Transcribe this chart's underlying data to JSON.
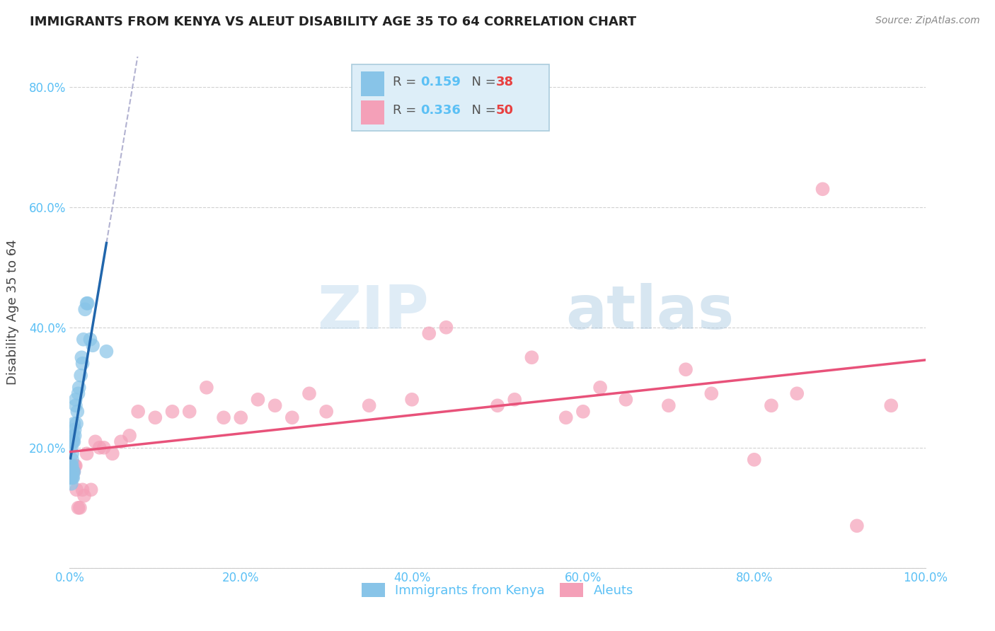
{
  "title": "IMMIGRANTS FROM KENYA VS ALEUT DISABILITY AGE 35 TO 64 CORRELATION CHART",
  "source": "Source: ZipAtlas.com",
  "ylabel": "Disability Age 35 to 64",
  "xlim": [
    0.0,
    1.0
  ],
  "ylim": [
    0.0,
    0.85
  ],
  "xticks": [
    0.0,
    0.2,
    0.4,
    0.6,
    0.8,
    1.0
  ],
  "yticks": [
    0.0,
    0.2,
    0.4,
    0.6,
    0.8
  ],
  "xticklabels": [
    "0.0%",
    "20.0%",
    "40.0%",
    "60.0%",
    "80.0%",
    "100.0%"
  ],
  "yticklabels": [
    "",
    "20.0%",
    "40.0%",
    "60.0%",
    "80.0%"
  ],
  "kenya_R": 0.159,
  "kenya_N": 38,
  "aleut_R": 0.336,
  "aleut_N": 50,
  "kenya_color": "#88c4e8",
  "aleut_color": "#f4a0b8",
  "kenya_line_color": "#2166ac",
  "aleut_line_color": "#e8527a",
  "dashed_line_color": "#aaaacc",
  "kenya_x": [
    0.001,
    0.001,
    0.001,
    0.002,
    0.002,
    0.002,
    0.002,
    0.003,
    0.003,
    0.003,
    0.003,
    0.003,
    0.003,
    0.004,
    0.004,
    0.004,
    0.004,
    0.005,
    0.005,
    0.005,
    0.006,
    0.006,
    0.007,
    0.007,
    0.008,
    0.009,
    0.01,
    0.011,
    0.013,
    0.014,
    0.015,
    0.016,
    0.018,
    0.02,
    0.021,
    0.024,
    0.027,
    0.043
  ],
  "kenya_y": [
    0.15,
    0.17,
    0.17,
    0.14,
    0.15,
    0.17,
    0.2,
    0.15,
    0.16,
    0.17,
    0.18,
    0.19,
    0.21,
    0.15,
    0.16,
    0.21,
    0.22,
    0.16,
    0.21,
    0.24,
    0.22,
    0.23,
    0.27,
    0.28,
    0.24,
    0.26,
    0.29,
    0.3,
    0.32,
    0.35,
    0.34,
    0.38,
    0.43,
    0.44,
    0.44,
    0.38,
    0.37,
    0.36
  ],
  "aleut_x": [
    0.003,
    0.004,
    0.005,
    0.006,
    0.007,
    0.008,
    0.01,
    0.012,
    0.015,
    0.017,
    0.02,
    0.025,
    0.03,
    0.035,
    0.04,
    0.05,
    0.06,
    0.07,
    0.08,
    0.1,
    0.12,
    0.14,
    0.16,
    0.18,
    0.2,
    0.22,
    0.24,
    0.26,
    0.28,
    0.3,
    0.35,
    0.4,
    0.42,
    0.44,
    0.5,
    0.52,
    0.54,
    0.58,
    0.6,
    0.62,
    0.65,
    0.7,
    0.72,
    0.75,
    0.8,
    0.82,
    0.85,
    0.88,
    0.92,
    0.96
  ],
  "aleut_y": [
    0.15,
    0.16,
    0.16,
    0.17,
    0.17,
    0.13,
    0.1,
    0.1,
    0.13,
    0.12,
    0.19,
    0.13,
    0.21,
    0.2,
    0.2,
    0.19,
    0.21,
    0.22,
    0.26,
    0.25,
    0.26,
    0.26,
    0.3,
    0.25,
    0.25,
    0.28,
    0.27,
    0.25,
    0.29,
    0.26,
    0.27,
    0.28,
    0.39,
    0.4,
    0.27,
    0.28,
    0.35,
    0.25,
    0.26,
    0.3,
    0.28,
    0.27,
    0.33,
    0.29,
    0.18,
    0.27,
    0.29,
    0.63,
    0.07,
    0.27
  ],
  "watermark_zip": "ZIP",
  "watermark_atlas": "atlas",
  "legend_box_color": "#ddeef8",
  "legend_border_color": "#aaccdd"
}
